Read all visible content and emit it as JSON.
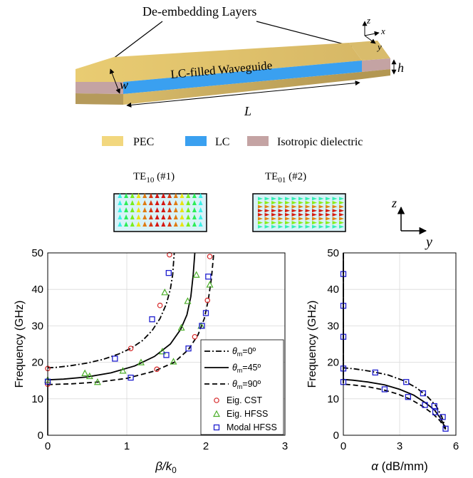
{
  "waveguide": {
    "label_layers": "De-embedding Layers",
    "label_lc": "LC-filled Waveguide",
    "dim_w": "w",
    "dim_l": "L",
    "dim_h": "h",
    "axis_x": "x",
    "axis_y": "y",
    "axis_z": "z",
    "legend": [
      {
        "label": "PEC",
        "color": "#f2d77e"
      },
      {
        "label": "LC",
        "color": "#3aa0f0"
      },
      {
        "label": "Isotropic dielectric",
        "color": "#c4a3a3"
      }
    ]
  },
  "modes": {
    "te10_base": "TE",
    "te10_sub": "10",
    "te10_num": " (#1)",
    "te01_base": "TE",
    "te01_sub": "01",
    "te01_num": " (#2)",
    "axis_z": "z",
    "axis_y": "y"
  },
  "chart_data": [
    {
      "type": "line",
      "xlabel_base": "β/k",
      "xlabel_sub": "0",
      "ylabel": "Frequency (GHz)",
      "xlim": [
        0,
        3
      ],
      "ylim": [
        0,
        50
      ],
      "xticks": [
        "0",
        "1",
        "2",
        "3"
      ],
      "yticks": [
        "0",
        "10",
        "20",
        "30",
        "40",
        "50"
      ],
      "series": [
        {
          "name": "θm=0º",
          "label_base": "θ",
          "label_sub": "m",
          "label_rest": "=0º",
          "dash": "dashdot",
          "x": [
            0.0,
            0.1,
            0.3,
            0.5,
            0.7,
            0.9,
            1.05,
            1.2,
            1.32,
            1.42,
            1.5,
            1.55,
            1.58,
            1.6
          ],
          "y": [
            18.5,
            18.6,
            19.1,
            19.8,
            20.8,
            22.3,
            23.8,
            26.0,
            28.7,
            32.0,
            36.0,
            40.0,
            44.0,
            50.0
          ]
        },
        {
          "name": "θm=45º",
          "label_base": "θ",
          "label_sub": "m",
          "label_rest": "=45º",
          "dash": "solid",
          "x": [
            0.0,
            0.2,
            0.5,
            0.8,
            1.1,
            1.35,
            1.55,
            1.68,
            1.76,
            1.81,
            1.84,
            1.86
          ],
          "y": [
            15.2,
            15.4,
            16.0,
            17.1,
            19.0,
            21.6,
            25.0,
            29.0,
            33.0,
            38.0,
            44.0,
            50.0
          ]
        },
        {
          "name": "θm=90º",
          "label_base": "θ",
          "label_sub": "m",
          "label_rest": "=90º",
          "dash": "dashed",
          "x": [
            0.0,
            0.3,
            0.65,
            1.0,
            1.35,
            1.6,
            1.78,
            1.9,
            1.98,
            2.03,
            2.07,
            2.1
          ],
          "y": [
            13.9,
            14.1,
            14.6,
            15.6,
            17.6,
            20.0,
            23.5,
            27.5,
            32.0,
            37.0,
            43.0,
            50.0
          ]
        },
        {
          "name": "Eig. CST",
          "marker": "circle",
          "color": "#d62728",
          "x": [
            0.0,
            0.0,
            1.05,
            1.38,
            1.42,
            1.54,
            1.86,
            2.02,
            2.05
          ],
          "y": [
            18.3,
            14.0,
            23.8,
            18.1,
            35.6,
            49.5,
            27.0,
            37.0,
            49.0
          ]
        },
        {
          "name": "Eig. HFSS",
          "marker": "triangle",
          "color": "#4caf2a",
          "x": [
            0.0,
            0.47,
            0.53,
            0.63,
            0.95,
            1.18,
            1.45,
            1.48,
            1.59,
            1.69,
            1.77,
            1.88,
            1.94,
            2.05
          ],
          "y": [
            15.2,
            17.0,
            16.2,
            14.6,
            17.7,
            20.0,
            23.0,
            39.2,
            20.2,
            29.5,
            36.8,
            44.0,
            30.0,
            41.3
          ]
        },
        {
          "name": "Modal HFSS",
          "marker": "square",
          "color": "#1f1fcf",
          "x": [
            0.0,
            0.85,
            1.05,
            1.32,
            1.5,
            1.53,
            1.78,
            1.95,
            2.0,
            2.03
          ],
          "y": [
            14.7,
            21.0,
            15.8,
            31.8,
            22.0,
            44.5,
            23.8,
            30.0,
            33.5,
            43.5
          ]
        }
      ],
      "cutoff_line": {
        "x": [
          0.0,
          0.0
        ],
        "y": [
          0.0,
          14.0
        ]
      },
      "legend": "inside-right"
    },
    {
      "type": "line",
      "xlabel_base": "α",
      "xlabel_rest": " (dB/mm)",
      "xlim": [
        0,
        6
      ],
      "ylim": [
        0,
        50
      ],
      "xticks": [
        "0",
        "3",
        "6"
      ],
      "yticks": [
        "0",
        "10",
        "20",
        "30",
        "40",
        "50"
      ],
      "series": [
        {
          "name": "θm=0º",
          "dash": "dashdot",
          "x": [
            0.0,
            0.0,
            0.6,
            1.5,
            2.4,
            3.2,
            3.9,
            4.5,
            4.95,
            5.25,
            5.45
          ],
          "y": [
            50.0,
            18.5,
            18.2,
            17.5,
            16.5,
            15.0,
            13.0,
            10.5,
            8.0,
            5.0,
            2.0
          ]
        },
        {
          "name": "θm=45º",
          "dash": "solid",
          "x": [
            0.0,
            0.0,
            0.5,
            1.3,
            2.2,
            3.0,
            3.75,
            4.35,
            4.85,
            5.2,
            5.45
          ],
          "y": [
            50.0,
            15.3,
            15.1,
            14.6,
            13.8,
            12.6,
            11.0,
            9.0,
            7.0,
            4.5,
            1.8
          ]
        },
        {
          "name": "θm=90º",
          "dash": "dashed",
          "x": [
            0.0,
            0.0,
            0.5,
            1.3,
            2.1,
            2.9,
            3.6,
            4.2,
            4.75,
            5.15,
            5.45
          ],
          "y": [
            50.0,
            14.0,
            13.8,
            13.3,
            12.5,
            11.3,
            9.8,
            8.0,
            6.0,
            4.0,
            1.6
          ]
        },
        {
          "name": "Modal HFSS",
          "marker": "square",
          "color": "#1f1fcf",
          "x": [
            0.0,
            0.0,
            0.0,
            0.0,
            0.0,
            1.7,
            2.2,
            3.35,
            3.45,
            4.25,
            4.35,
            4.85,
            4.9,
            5.3,
            5.45
          ],
          "y": [
            44.2,
            35.5,
            27.0,
            18.3,
            14.6,
            17.2,
            12.6,
            14.6,
            10.5,
            11.5,
            8.3,
            8.0,
            6.3,
            5.0,
            1.8
          ]
        }
      ]
    }
  ]
}
